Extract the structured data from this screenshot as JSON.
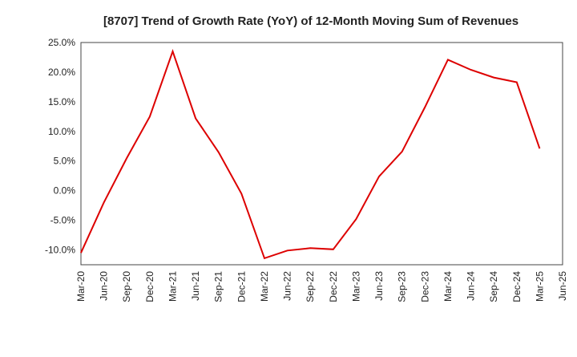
{
  "chart_data": {
    "type": "line",
    "title": "[8707]  Trend of Growth Rate (YoY) of 12-Month Moving Sum of Revenues",
    "xlabel": "",
    "ylabel": "",
    "x_tick_labels": [
      "Mar-20",
      "Jun-20",
      "Sep-20",
      "Dec-20",
      "Mar-21",
      "Jun-21",
      "Sep-21",
      "Dec-21",
      "Mar-22",
      "Jun-22",
      "Sep-22",
      "Dec-22",
      "Mar-23",
      "Jun-23",
      "Sep-23",
      "Dec-23",
      "Mar-24",
      "Jun-24",
      "Sep-24",
      "Dec-24",
      "Mar-25",
      "Jun-25"
    ],
    "y_ticks": [
      25.0,
      20.0,
      15.0,
      10.0,
      5.0,
      0.0,
      -5.0,
      -10.0
    ],
    "y_tick_labels": [
      "25.0%",
      "20.0%",
      "15.0%",
      "10.0%",
      "5.0%",
      "0.0%",
      "-5.0%",
      "-10.0%"
    ],
    "ylim": [
      -12.5,
      25.0
    ],
    "grid": true,
    "line_color": "#dd0000",
    "series": [
      {
        "x": [
          "Mar-20",
          "Jun-20",
          "Sep-20",
          "Dec-20",
          "Mar-21",
          "Jun-21",
          "Sep-21",
          "Dec-21",
          "Mar-22",
          "Jun-22",
          "Sep-22",
          "Dec-22",
          "Mar-23",
          "Jun-23",
          "Sep-23",
          "Dec-23",
          "Mar-24",
          "Jun-24",
          "Sep-24",
          "Dec-24",
          "Mar-25"
        ],
        "values": [
          -10.5,
          -2.0,
          5.5,
          12.5,
          23.5,
          12.2,
          6.5,
          -0.5,
          -11.4,
          -10.1,
          -9.7,
          -9.9,
          -4.8,
          2.4,
          6.6,
          14.1,
          22.1,
          20.4,
          19.1,
          18.3,
          7.1
        ]
      }
    ]
  }
}
